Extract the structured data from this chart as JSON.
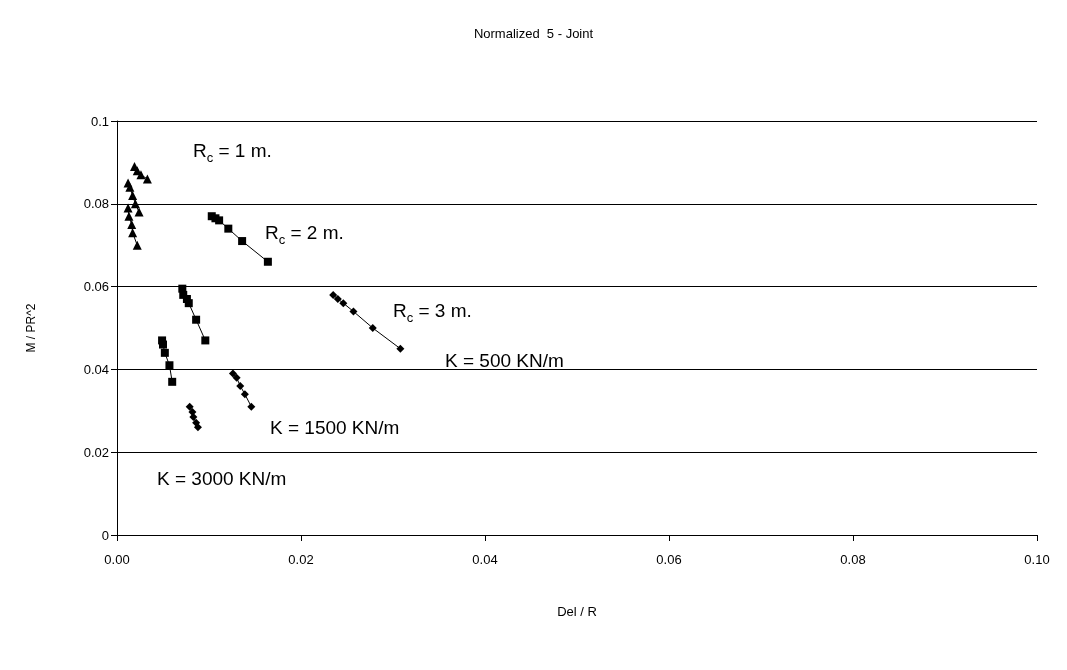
{
  "chart_data": {
    "type": "line",
    "title": "Normalized  5 - Joint",
    "xlabel": "Del / R",
    "ylabel": "M / PR^2",
    "xlim": [
      0,
      0.1
    ],
    "xticks": [
      {
        "value": 0,
        "label": "0.00"
      },
      {
        "value": 0.02,
        "label": "0.02"
      },
      {
        "value": 0.04,
        "label": "0.04"
      },
      {
        "value": 0.06,
        "label": "0.06"
      },
      {
        "value": 0.08,
        "label": "0.08"
      },
      {
        "value": 0.1,
        "label": "0.10"
      }
    ],
    "ylim": [
      0,
      0.1
    ],
    "yticks": [
      0,
      0.02,
      0.04,
      0.06,
      0.08,
      0.1
    ],
    "grid": "y",
    "line_style": "solid",
    "series": [
      {
        "marker": "triangle",
        "color": "#000000",
        "x": [
          0.0019,
          0.0022,
          0.0026,
          0.0033
        ],
        "values": [
          0.089,
          0.088,
          0.087,
          0.086
        ]
      },
      {
        "marker": "triangle",
        "color": "#000000",
        "x": [
          0.0012,
          0.0014,
          0.0017,
          0.002,
          0.0024
        ],
        "values": [
          0.085,
          0.084,
          0.082,
          0.08,
          0.078
        ]
      },
      {
        "marker": "triangle",
        "color": "#000000",
        "x": [
          0.0012,
          0.0013,
          0.0016,
          0.0017,
          0.0022
        ],
        "values": [
          0.079,
          0.077,
          0.075,
          0.073,
          0.07
        ]
      },
      {
        "marker": "square",
        "color": "#000000",
        "x": [
          0.0103,
          0.0107,
          0.0111,
          0.0121,
          0.0136,
          0.0164
        ],
        "values": [
          0.077,
          0.0765,
          0.076,
          0.074,
          0.071,
          0.066
        ]
      },
      {
        "marker": "square",
        "color": "#000000",
        "x": [
          0.0071,
          0.0072,
          0.0076,
          0.0078,
          0.0086,
          0.0096
        ],
        "values": [
          0.0595,
          0.058,
          0.057,
          0.056,
          0.052,
          0.047
        ]
      },
      {
        "marker": "square",
        "color": "#000000",
        "x": [
          0.0049,
          0.005,
          0.0052,
          0.0057,
          0.006
        ],
        "values": [
          0.047,
          0.046,
          0.044,
          0.041,
          0.037
        ]
      },
      {
        "marker": "diamond",
        "color": "#000000",
        "x": [
          0.0235,
          0.024,
          0.0246,
          0.0257,
          0.0278,
          0.0308
        ],
        "values": [
          0.058,
          0.057,
          0.056,
          0.054,
          0.05,
          0.045
        ]
      },
      {
        "marker": "diamond",
        "color": "#000000",
        "x": [
          0.0126,
          0.013,
          0.0134,
          0.0139,
          0.0146
        ],
        "values": [
          0.039,
          0.038,
          0.036,
          0.034,
          0.031
        ]
      },
      {
        "marker": "diamond",
        "color": "#000000",
        "x": [
          0.0079,
          0.0082,
          0.0083,
          0.0086,
          0.0088
        ],
        "values": [
          0.031,
          0.0297,
          0.0285,
          0.0271,
          0.026
        ]
      }
    ],
    "annotations": [
      "R$_{c}$ = 1 m.",
      "R$_{c}$ = 2 m.",
      "R$_{c}$ = 3 m.",
      "K = 500 KN/m",
      "K = 1500 KN/m",
      "K = 3000 KN/m"
    ]
  }
}
